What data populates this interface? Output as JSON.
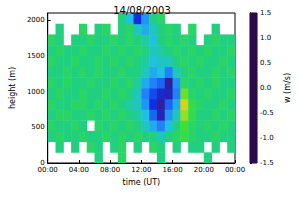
{
  "chart_data": {
    "type": "heatmap",
    "title": "14/08/2003",
    "x_label": "time (UT)",
    "y_label": "height (m)",
    "x": [
      0.5,
      1.5,
      2.5,
      3.5,
      4.5,
      5.5,
      6.5,
      7.5,
      8.5,
      9.5,
      10.5,
      11.5,
      12.5,
      13.5,
      14.5,
      15.5,
      16.5,
      17.5,
      18.5,
      19.5,
      20.5,
      21.5,
      22.5,
      23.5
    ],
    "y": [
      75,
      225,
      375,
      525,
      675,
      825,
      975,
      1125,
      1275,
      1425,
      1575,
      1725,
      1875,
      2025
    ],
    "cells": [
      [
        null,
        null,
        null,
        null,
        null,
        null,
        0.0,
        null,
        null,
        0.1,
        null,
        null,
        null,
        null,
        0.0,
        null,
        null,
        null,
        null,
        null,
        0.0,
        null,
        null,
        null
      ],
      [
        null,
        0.0,
        null,
        0.0,
        null,
        0.1,
        0.0,
        null,
        0.0,
        0.1,
        null,
        0.0,
        null,
        0.1,
        0.0,
        null,
        0.0,
        null,
        0.0,
        0.0,
        null,
        0.0,
        null,
        0.0
      ],
      [
        0.0,
        0.1,
        0.0,
        0.0,
        0.1,
        0.0,
        0.0,
        0.1,
        0.0,
        0.1,
        0.0,
        0.1,
        0.0,
        0.0,
        -0.2,
        0.0,
        0.1,
        0.2,
        0.1,
        0.0,
        0.0,
        0.1,
        0.0,
        0.0
      ],
      [
        0.1,
        0.0,
        0.0,
        0.1,
        0.0,
        null,
        0.1,
        0.0,
        0.1,
        0.0,
        0.1,
        0.0,
        -0.2,
        -0.4,
        -0.6,
        -0.3,
        0.0,
        0.3,
        0.1,
        0.0,
        0.1,
        0.0,
        0.1,
        0.0
      ],
      [
        0.0,
        0.1,
        0.1,
        0.0,
        0.0,
        0.1,
        0.0,
        0.1,
        0.0,
        0.1,
        0.0,
        -0.1,
        -0.3,
        -0.7,
        -1.1,
        -0.5,
        -0.2,
        0.5,
        0.2,
        0.0,
        0.0,
        0.1,
        0.0,
        0.1
      ],
      [
        0.1,
        0.0,
        0.0,
        0.1,
        0.1,
        0.0,
        0.1,
        0.0,
        0.1,
        0.0,
        -0.1,
        -0.2,
        -0.5,
        -0.9,
        -1.2,
        -0.7,
        -0.4,
        0.7,
        0.2,
        0.1,
        0.0,
        0.0,
        0.1,
        0.0
      ],
      [
        0.0,
        0.1,
        0.0,
        0.0,
        0.1,
        0.0,
        0.0,
        0.1,
        0.0,
        0.1,
        0.0,
        -0.2,
        -0.6,
        -0.8,
        -1.0,
        -1.1,
        -0.6,
        0.4,
        0.1,
        0.0,
        0.1,
        0.0,
        0.0,
        0.1
      ],
      [
        0.1,
        0.0,
        0.1,
        0.0,
        0.0,
        0.1,
        0.0,
        0.0,
        0.1,
        0.0,
        0.1,
        -0.1,
        -0.4,
        -0.6,
        -0.7,
        -1.2,
        -0.5,
        0.1,
        0.0,
        0.1,
        0.0,
        0.1,
        0.0,
        0.0
      ],
      [
        0.0,
        0.0,
        0.1,
        0.0,
        0.1,
        0.0,
        0.1,
        0.0,
        0.0,
        0.1,
        0.0,
        0.0,
        -0.2,
        -0.4,
        -0.3,
        -0.6,
        -0.2,
        0.0,
        0.1,
        0.0,
        0.0,
        0.1,
        0.0,
        0.1
      ],
      [
        0.1,
        0.0,
        0.0,
        0.1,
        0.0,
        0.0,
        0.1,
        0.0,
        0.1,
        0.0,
        0.1,
        0.0,
        -0.1,
        -0.3,
        -0.2,
        -0.2,
        0.0,
        0.1,
        0.0,
        0.1,
        0.0,
        0.0,
        0.1,
        0.0
      ],
      [
        0.0,
        0.1,
        0.0,
        0.0,
        0.1,
        0.0,
        0.0,
        0.1,
        0.0,
        0.1,
        0.0,
        0.1,
        0.0,
        -0.2,
        -0.1,
        0.0,
        0.1,
        0.0,
        0.1,
        0.0,
        0.1,
        0.0,
        0.0,
        0.1
      ],
      [
        0.1,
        0.0,
        null,
        0.0,
        0.0,
        0.1,
        0.0,
        0.0,
        0.1,
        0.0,
        0.1,
        0.0,
        -0.1,
        -0.3,
        0.0,
        0.1,
        0.0,
        0.1,
        0.0,
        null,
        0.0,
        0.1,
        0.0,
        0.0
      ],
      [
        null,
        0.0,
        null,
        null,
        0.1,
        null,
        0.0,
        0.1,
        null,
        0.0,
        0.1,
        -0.2,
        -0.4,
        -0.2,
        0.0,
        0.1,
        0.0,
        null,
        0.1,
        null,
        null,
        0.0,
        null,
        null
      ],
      [
        null,
        null,
        null,
        null,
        null,
        null,
        null,
        null,
        null,
        0.0,
        -0.3,
        -0.9,
        -0.5,
        0.0,
        0.1,
        null,
        null,
        null,
        null,
        null,
        null,
        null,
        null,
        null
      ]
    ],
    "xlim": [
      0,
      24
    ],
    "xticks": [
      {
        "value": 0,
        "label": "00:00"
      },
      {
        "value": 4,
        "label": "04:00"
      },
      {
        "value": 8,
        "label": "08:00"
      },
      {
        "value": 12,
        "label": "12:00"
      },
      {
        "value": 16,
        "label": "16:00"
      },
      {
        "value": 20,
        "label": "20:00"
      },
      {
        "value": 24,
        "label": "00:00"
      }
    ],
    "ylim": [
      0,
      2100
    ],
    "yticks": [
      0,
      500,
      1000,
      1500,
      2000
    ],
    "colorbar": {
      "label": "w (m/s)",
      "range": [
        -1.5,
        1.5
      ],
      "ticks": [
        -1.5,
        {
          "value": -1,
          "label": "-1.0"
        },
        -0.5,
        {
          "value": 0,
          "label": "0.0"
        },
        0.5,
        {
          "value": 1,
          "label": "1.0"
        },
        1.5
      ]
    }
  }
}
